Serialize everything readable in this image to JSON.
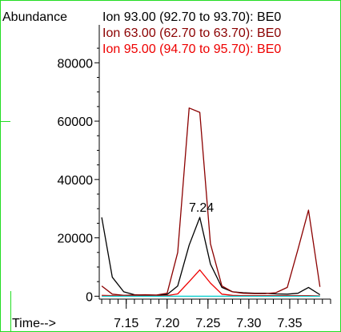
{
  "chart_data": {
    "type": "line",
    "ylabel": "Abundance",
    "xlabel": "Time-->",
    "xlim": [
      7.117,
      7.4
    ],
    "ylim": [
      -1000,
      93000
    ],
    "yticks": [
      0,
      20000,
      40000,
      60000,
      80000
    ],
    "ytick_labels": [
      "0",
      "20000",
      "40000",
      "60000",
      "80000"
    ],
    "xticks": [
      7.15,
      7.2,
      7.25,
      7.3,
      7.35
    ],
    "xtick_labels": [
      "7.15",
      "7.20",
      "7.25",
      "7.30",
      "7.35"
    ],
    "legend_position": "top",
    "annotations": [
      {
        "text": "7.24",
        "x": 7.24,
        "y": 27000
      }
    ],
    "x": [
      7.12,
      7.133,
      7.147,
      7.16,
      7.173,
      7.187,
      7.2,
      7.213,
      7.227,
      7.24,
      7.253,
      7.267,
      7.28,
      7.293,
      7.307,
      7.32,
      7.333,
      7.347,
      7.36,
      7.373,
      7.387
    ],
    "series": [
      {
        "name": "Ion  93.00 (92.70 to 93.70): BE0",
        "color": "#000000",
        "values": [
          27000,
          6500,
          1500,
          500,
          300,
          300,
          600,
          3500,
          17500,
          27000,
          11000,
          3000,
          1500,
          1200,
          1000,
          1000,
          800,
          700,
          1000,
          3000,
          500
        ]
      },
      {
        "name": "Ion  63.00 (62.70 to 63.70): BE0",
        "color": "#8b0000",
        "values": [
          3500,
          700,
          300,
          400,
          500,
          400,
          1000,
          15000,
          64500,
          63000,
          18000,
          3500,
          1500,
          1000,
          900,
          900,
          1200,
          3000,
          16000,
          29500,
          3200
        ]
      },
      {
        "name": "Ion  95.00 (94.70 to 95.70): BE0",
        "color": "#ee0000",
        "values": [
          300,
          200,
          100,
          100,
          100,
          100,
          200,
          800,
          5000,
          9000,
          4500,
          700,
          300,
          200,
          200,
          200,
          200,
          200,
          200,
          200,
          100
        ]
      },
      {
        "name": "",
        "color": "#00cccc",
        "values": [
          0,
          0,
          0,
          0,
          0,
          0,
          0,
          0,
          0,
          0,
          0,
          0,
          0,
          0,
          0,
          0,
          0,
          0,
          0,
          0,
          0
        ]
      }
    ]
  }
}
